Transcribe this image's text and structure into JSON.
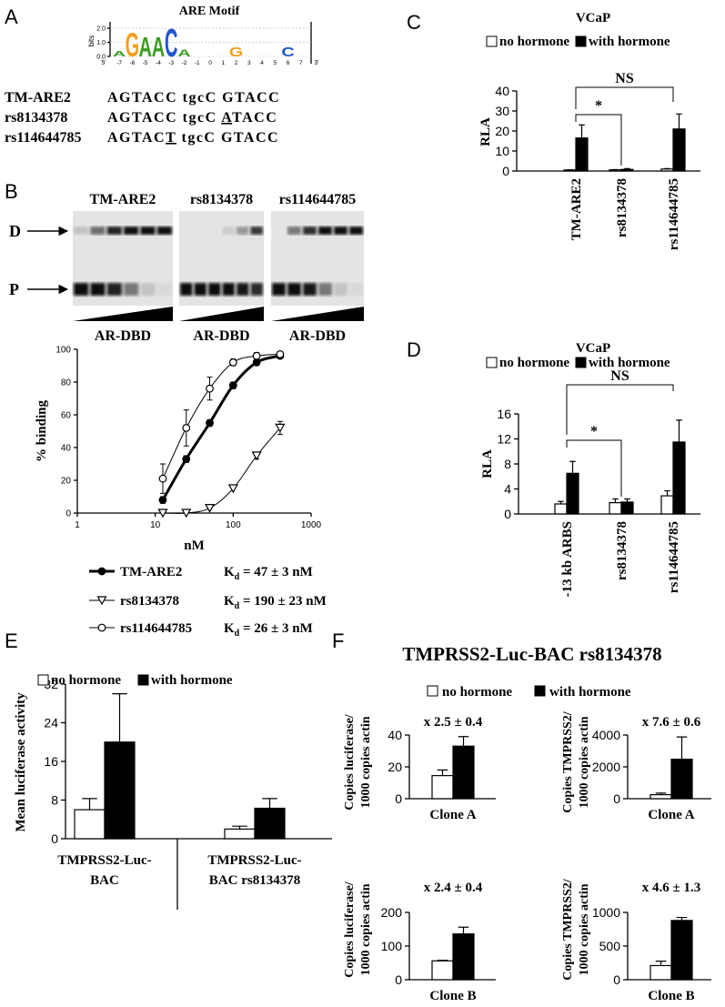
{
  "panel_labels": {
    "a": "A",
    "b": "B",
    "c": "C",
    "d": "D",
    "e": "E",
    "f": "F"
  },
  "motif": {
    "title": "ARE Motif",
    "ylabel": "bits",
    "grid": true,
    "ylim": [
      0,
      2.2
    ],
    "yticks": [
      {
        "value": 0,
        "label": "0.0"
      },
      {
        "value": 1,
        "label": "1.0"
      },
      {
        "value": 2,
        "label": "2.0"
      }
    ],
    "xlim": [
      -7.5,
      7.5
    ],
    "xticks": [
      -7,
      -6,
      -5,
      -4,
      -3,
      -2,
      -1,
      0,
      1,
      2,
      3,
      4,
      5,
      6,
      7
    ],
    "end_labels": [
      "5'",
      "3'"
    ],
    "letters": [
      "A",
      "G",
      "A",
      "A",
      "C",
      "A",
      "G",
      "C"
    ],
    "x": [
      -7,
      -6,
      -5,
      -4,
      -3,
      -2,
      2,
      6
    ],
    "bits": [
      0.4,
      1.7,
      1.4,
      1.4,
      2.0,
      0.5,
      0.7,
      0.7
    ],
    "letter_colors": {
      "A": "#3a9d23",
      "G": "#f0a020",
      "C": "#2255cc"
    }
  },
  "sequences": [
    {
      "name": "TM-ARE2",
      "segments": [
        {
          "text": "AGTACC tgcC GTACC",
          "underline": false
        }
      ]
    },
    {
      "name": "rs8134378",
      "segments": [
        {
          "text": "AGTACC tgcC ",
          "underline": false
        },
        {
          "text": "A",
          "underline": true
        },
        {
          "text": "TACC",
          "underline": false
        }
      ]
    },
    {
      "name": "rs114644785",
      "segments": [
        {
          "text": "AGTAC",
          "underline": false
        },
        {
          "text": "T",
          "underline": true
        },
        {
          "text": " tgcC GTACC",
          "underline": false
        }
      ]
    }
  ],
  "gel": {
    "lanes": [
      "TM-ARE2",
      "rs8134378",
      "rs114644785"
    ],
    "band_labels": [
      "D",
      "P"
    ],
    "wedge_label": "AR-DBD"
  },
  "panel_f": {
    "title": "TMPRSS2-Luc-BAC rs8134378",
    "legend": [
      "no hormone",
      "with hormone"
    ]
  },
  "chart_data": [
    {
      "type": "line",
      "xlabel": "nM",
      "ylabel": "% binding",
      "xscale": "log",
      "xlim": [
        1,
        1000
      ],
      "xticks": [
        1,
        10,
        100,
        1000
      ],
      "ylim": [
        0,
        100
      ],
      "yticks": [
        0,
        20,
        40,
        60,
        80,
        100
      ],
      "x": [
        12.5,
        25,
        50,
        100,
        200,
        400
      ],
      "kd_symbol": "K",
      "kd_subscript": "d",
      "series": [
        {
          "name": "TM-ARE2",
          "color": "#000000",
          "marker": "filled-circle",
          "line_width": 3,
          "values": [
            8,
            33,
            55,
            78,
            92,
            96
          ],
          "errors": [
            2,
            2,
            2,
            2,
            1,
            1
          ],
          "kd_label": " = 47 ± 3 nM"
        },
        {
          "name": "rs8134378",
          "color": "#000000",
          "marker": "triangle-down",
          "line_width": 1,
          "values": [
            0,
            0,
            3,
            15,
            35,
            52
          ],
          "errors": [
            null,
            null,
            null,
            null,
            2,
            4
          ],
          "kd_label": " = 190 ± 23 nM"
        },
        {
          "name": "rs114644785",
          "color": "#000000",
          "marker": "open-circle",
          "line_width": 1,
          "values": [
            21,
            52,
            76,
            92,
            96,
            97
          ],
          "errors": [
            9,
            11,
            7,
            2,
            2,
            1
          ],
          "kd_label": " = 26 ± 3 nM"
        }
      ]
    },
    {
      "type": "bar",
      "title": "VCaP",
      "ylabel": "RLA",
      "categories": [
        "TM-ARE2",
        "rs8134378",
        "rs114644785"
      ],
      "ylim": [
        0,
        40
      ],
      "yticks": [
        0,
        10,
        20,
        30,
        40
      ],
      "annotations": [
        "NS",
        "*"
      ],
      "series": [
        {
          "name": "no hormone",
          "color": "#ffffff",
          "values": [
            0.5,
            0.6,
            1.0
          ],
          "errors": [
            0.1,
            0.1,
            0.2
          ]
        },
        {
          "name": "with hormone",
          "color": "#000000",
          "values": [
            16.5,
            0.8,
            21
          ],
          "errors": [
            6.5,
            0.4,
            7.5
          ]
        }
      ]
    },
    {
      "type": "bar",
      "title": "VCaP",
      "ylabel": "RLA",
      "categories": [
        "-13 kb ARBS",
        "rs8134378",
        "rs114644785"
      ],
      "ylim": [
        0,
        16
      ],
      "yticks": [
        0,
        4,
        8,
        12,
        16
      ],
      "annotations": [
        "NS",
        "*"
      ],
      "series": [
        {
          "name": "no hormone",
          "color": "#ffffff",
          "values": [
            1.6,
            1.8,
            2.9
          ],
          "errors": [
            0.4,
            0.6,
            0.8
          ]
        },
        {
          "name": "with hormone",
          "color": "#000000",
          "values": [
            6.5,
            1.9,
            11.5
          ],
          "errors": [
            1.9,
            0.5,
            3.5
          ]
        }
      ]
    },
    {
      "type": "bar",
      "ylabel": "Mean luciferase activity",
      "categories": [
        [
          "TMPRSS2-Luc-",
          "BAC"
        ],
        [
          "TMPRSS2-Luc-",
          "BAC rs8134378"
        ]
      ],
      "ylim": [
        0,
        32
      ],
      "yticks": [
        0,
        8,
        16,
        24,
        32
      ],
      "series": [
        {
          "name": "no hormone",
          "color": "#ffffff",
          "values": [
            6,
            2
          ],
          "errors": [
            2.3,
            0.6
          ]
        },
        {
          "name": "with hormone",
          "color": "#000000",
          "values": [
            20,
            6.3
          ],
          "errors": [
            10,
            2
          ]
        }
      ]
    },
    {
      "type": "bar",
      "ylabel": [
        "Copies luciferase/",
        "1000 copies actin"
      ],
      "categories": [
        "Clone A"
      ],
      "annotation": "x 2.5 ± 0.4",
      "ylim": [
        0,
        40
      ],
      "yticks": [
        0,
        20,
        40
      ],
      "series": [
        {
          "color": "#ffffff",
          "values": [
            14.5
          ],
          "errors": [
            3.5
          ]
        },
        {
          "color": "#000000",
          "values": [
            33
          ],
          "errors": [
            6
          ]
        }
      ]
    },
    {
      "type": "bar",
      "ylabel": [
        "Copies TMPRSS2/",
        "1000 copies actin"
      ],
      "categories": [
        "Clone A"
      ],
      "annotation": "x 7.6 ± 0.6",
      "ylim": [
        0,
        4000
      ],
      "yticks": [
        0,
        2000,
        4000
      ],
      "series": [
        {
          "color": "#ffffff",
          "values": [
            250
          ],
          "errors": [
            100
          ]
        },
        {
          "color": "#000000",
          "values": [
            2480
          ],
          "errors": [
            1400
          ]
        }
      ]
    },
    {
      "type": "bar",
      "ylabel": [
        "Copies luciferase/",
        "1000 copies actin"
      ],
      "categories": [
        "Clone B"
      ],
      "annotation": "x 2.4 ± 0.4",
      "ylim": [
        0,
        200
      ],
      "yticks": [
        0,
        100,
        200
      ],
      "series": [
        {
          "color": "#ffffff",
          "values": [
            56
          ],
          "errors": [
            2
          ]
        },
        {
          "color": "#000000",
          "values": [
            136
          ],
          "errors": [
            20
          ]
        }
      ]
    },
    {
      "type": "bar",
      "ylabel": [
        "Copies TMPRSS2/",
        "1000 copies actin"
      ],
      "categories": [
        "Clone B"
      ],
      "annotation": "x 4.6 ± 1.3",
      "ylim": [
        0,
        1000
      ],
      "yticks": [
        0,
        500,
        1000
      ],
      "series": [
        {
          "color": "#ffffff",
          "values": [
            210
          ],
          "errors": [
            65
          ]
        },
        {
          "color": "#000000",
          "values": [
            880
          ],
          "errors": [
            45
          ]
        }
      ]
    }
  ]
}
